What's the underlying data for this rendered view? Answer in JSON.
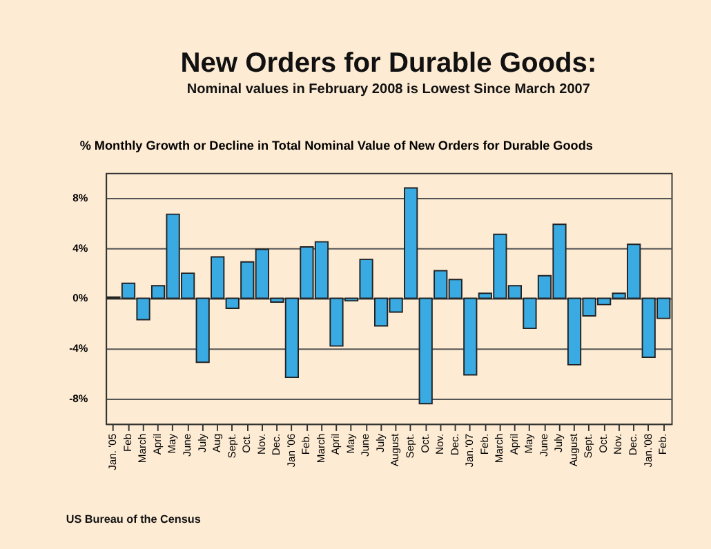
{
  "chart_data": {
    "type": "bar",
    "title": "New Orders for Durable Goods:",
    "subtitle": "Nominal values in February 2008 is Lowest Since March 2007",
    "ylabel": "% Monthly Growth or Decline in Total Nominal Value of New Orders for Durable Goods",
    "categories": [
      "Jan. '05",
      "Feb",
      "March",
      "April",
      "May",
      "June",
      "July",
      "Aug",
      "Sept.",
      "Oct.",
      "Nov.",
      "Dec.",
      "Jan '06",
      "Feb.",
      "March",
      "April",
      "May",
      "June",
      "July",
      "August",
      "Sept.",
      "Oct.",
      "Nov.",
      "Dec.",
      "Jan.'07",
      "Feb.",
      "March",
      "April",
      "May",
      "June",
      "July",
      "August",
      "Sept.",
      "Oct.",
      "Nov.",
      "Dec.",
      "Jan.'08",
      "Feb."
    ],
    "values": [
      0.1,
      1.2,
      -1.7,
      1.0,
      6.7,
      2.0,
      -5.1,
      3.3,
      -0.8,
      2.9,
      3.9,
      -0.3,
      -6.3,
      4.1,
      4.5,
      -3.8,
      -0.2,
      3.1,
      -2.2,
      -1.1,
      8.8,
      -8.4,
      2.2,
      1.5,
      -6.1,
      0.4,
      5.1,
      1.0,
      -2.4,
      1.8,
      5.9,
      -5.3,
      -1.4,
      -0.5,
      0.4,
      4.3,
      -4.7,
      -1.6
    ],
    "color": "#3aaae2",
    "ylim": [
      -10,
      10
    ],
    "yticks": [
      {
        "value": -8,
        "label": "-8%"
      },
      {
        "value": -4,
        "label": "-4%"
      },
      {
        "value": 0,
        "label": "0%"
      },
      {
        "value": 4,
        "label": "4%"
      },
      {
        "value": 8,
        "label": "8%"
      }
    ],
    "grid": "y",
    "annotations": [
      "US Bureau of the Census"
    ]
  }
}
